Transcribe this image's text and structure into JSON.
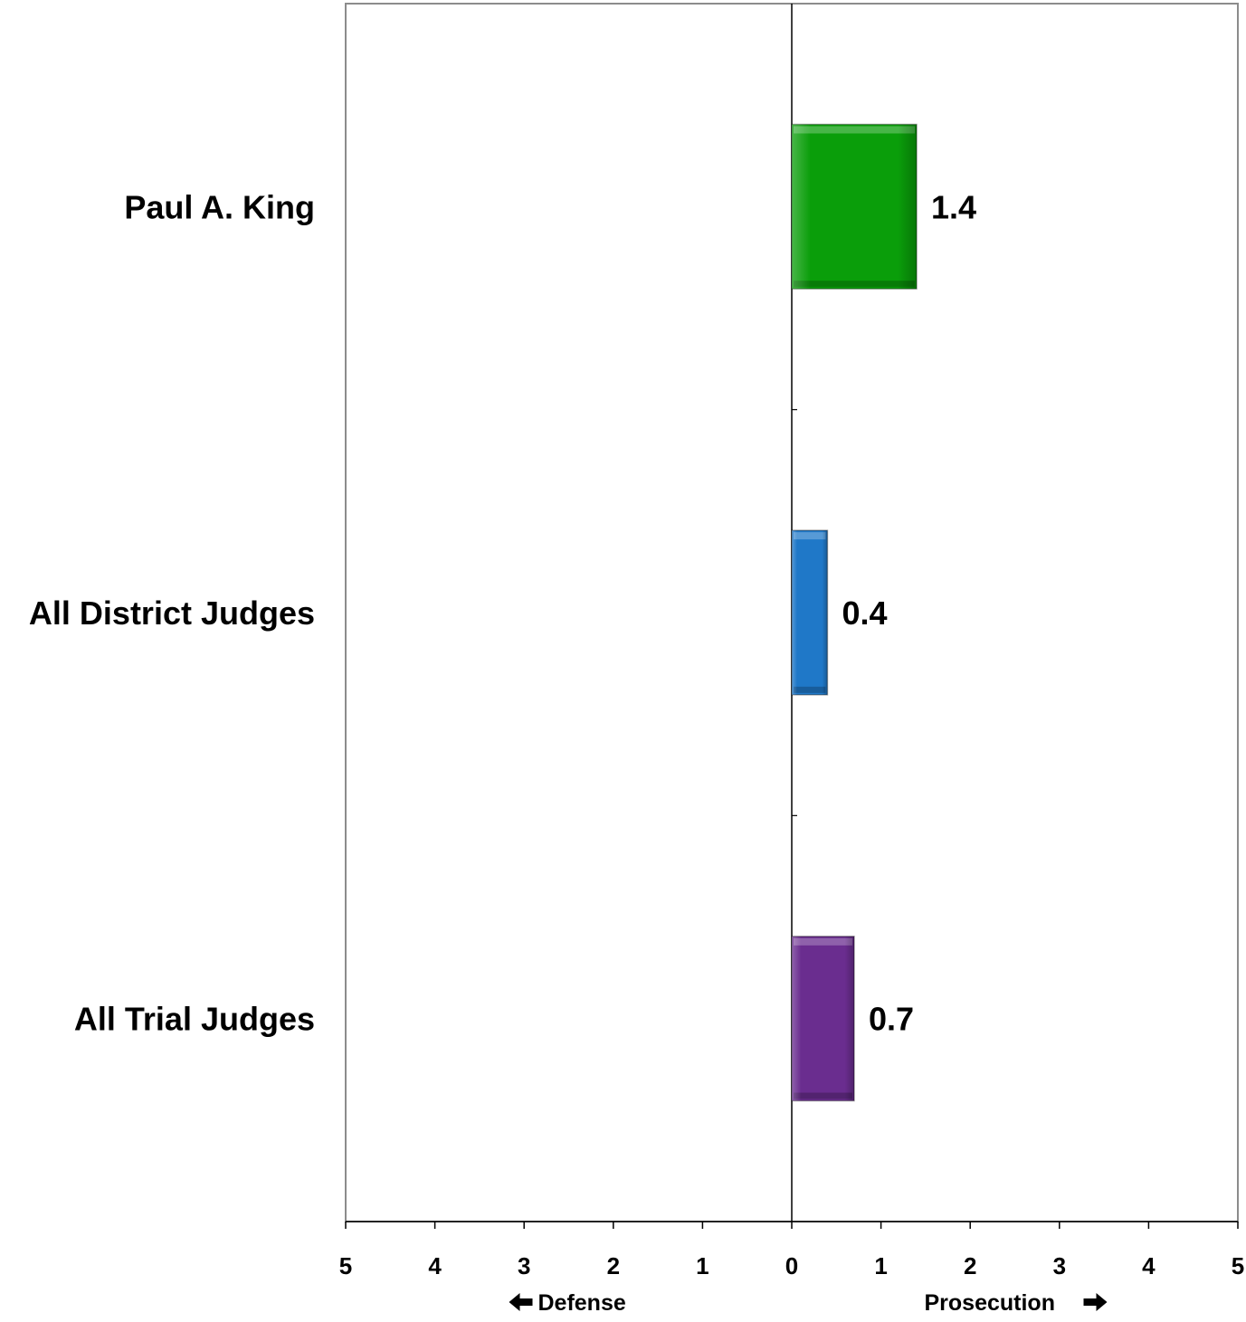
{
  "chart_data": {
    "type": "bar",
    "orientation": "horizontal",
    "categories": [
      "Paul A. King",
      "All District Judges",
      "All Trial Judges"
    ],
    "values": [
      1.4,
      0.4,
      0.7
    ],
    "value_labels": [
      "1.4",
      "0.4",
      "0.7"
    ],
    "xlim": [
      -5,
      5
    ],
    "x_ticks": [
      -5,
      -4,
      -3,
      -2,
      -1,
      0,
      1,
      2,
      3,
      4,
      5
    ],
    "x_tick_labels": [
      "5",
      "4",
      "3",
      "2",
      "1",
      "0",
      "1",
      "2",
      "3",
      "4",
      "5"
    ],
    "direction_labels": {
      "left": "Defense",
      "right": "Prosecution"
    },
    "bar_colors": [
      "#0a9e0a",
      "#1f78c8",
      "#6a2d8f"
    ],
    "grid": false,
    "legend": "none"
  }
}
